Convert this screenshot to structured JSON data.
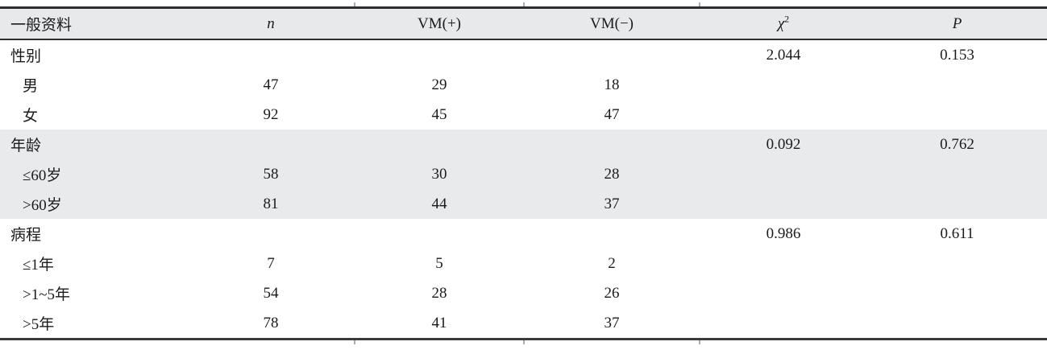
{
  "table": {
    "columns": [
      {
        "key": "label",
        "label": "一般资料",
        "italic": false
      },
      {
        "key": "n",
        "label": "n",
        "italic": true
      },
      {
        "key": "vmp",
        "label": "VM(+)",
        "italic": false
      },
      {
        "key": "vmn",
        "label": "VM(−)",
        "italic": false
      },
      {
        "key": "chi2",
        "label": "χ",
        "sup": "2",
        "italic": true
      },
      {
        "key": "p",
        "label": "P",
        "italic": true
      }
    ],
    "rows": [
      {
        "type": "group",
        "label": "性别",
        "n": "",
        "vmp": "",
        "vmn": "",
        "chi2": "2.044",
        "p": "0.153",
        "shaded": false
      },
      {
        "type": "sub",
        "label": "男",
        "n": "47",
        "vmp": "29",
        "vmn": "18",
        "chi2": "",
        "p": "",
        "shaded": false
      },
      {
        "type": "sub",
        "label": "女",
        "n": "92",
        "vmp": "45",
        "vmn": "47",
        "chi2": "",
        "p": "",
        "shaded": false
      },
      {
        "type": "group",
        "label": "年龄",
        "n": "",
        "vmp": "",
        "vmn": "",
        "chi2": "0.092",
        "p": "0.762",
        "shaded": true
      },
      {
        "type": "sub",
        "label": "≤60岁",
        "n": "58",
        "vmp": "30",
        "vmn": "28",
        "chi2": "",
        "p": "",
        "shaded": true
      },
      {
        "type": "sub",
        "label": ">60岁",
        "n": "81",
        "vmp": "44",
        "vmn": "37",
        "chi2": "",
        "p": "",
        "shaded": true
      },
      {
        "type": "group",
        "label": "病程",
        "n": "",
        "vmp": "",
        "vmn": "",
        "chi2": "0.986",
        "p": "0.611",
        "shaded": false
      },
      {
        "type": "sub",
        "label": "≤1年",
        "n": "7",
        "vmp": "5",
        "vmn": "2",
        "chi2": "",
        "p": "",
        "shaded": false
      },
      {
        "type": "sub",
        "label": ">1~5年",
        "n": "54",
        "vmp": "28",
        "vmn": "26",
        "chi2": "",
        "p": "",
        "shaded": false
      },
      {
        "type": "sub",
        "label": ">5年",
        "n": "78",
        "vmp": "41",
        "vmn": "37",
        "chi2": "",
        "p": "",
        "shaded": false
      }
    ],
    "colors": {
      "header_bg": "#e7e9eb",
      "shaded_band_bg": "#e9eaec",
      "rule": "#2e2e2e",
      "text": "#1b1b1b"
    }
  }
}
